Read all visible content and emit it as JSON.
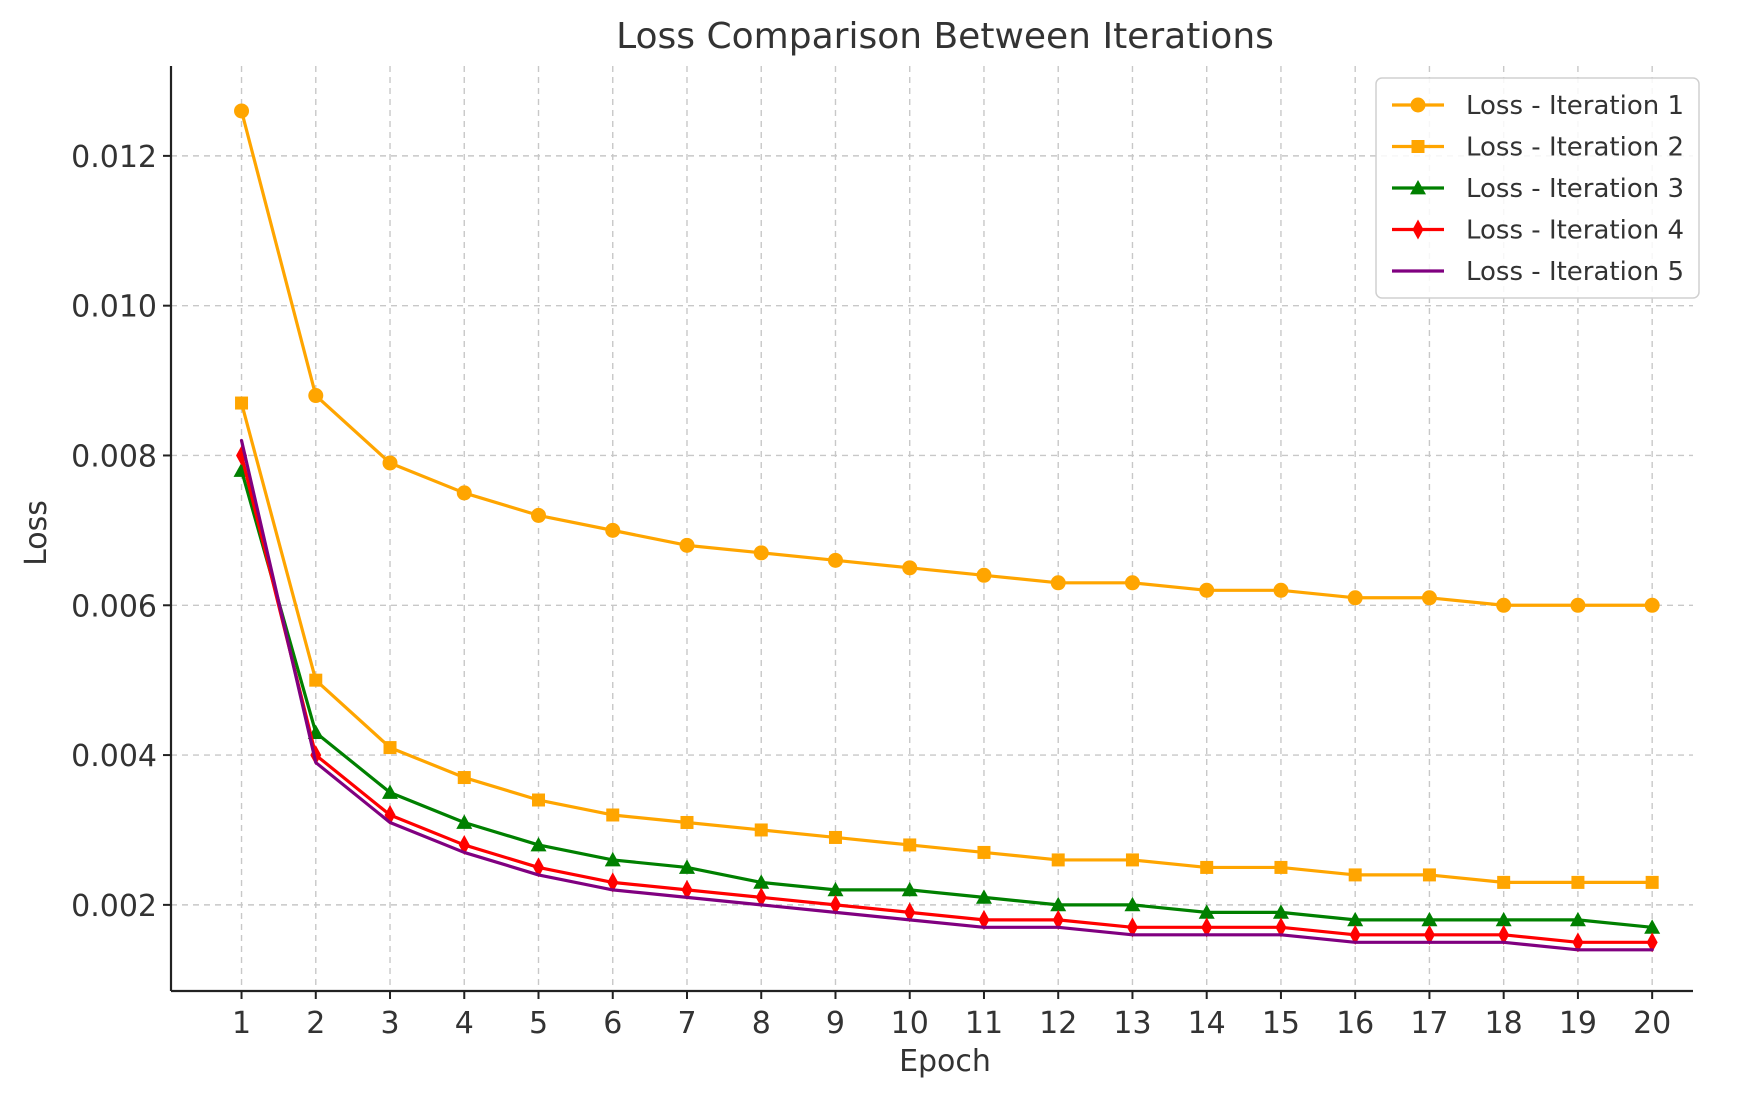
{
  "chart_data": {
    "type": "line",
    "title": "Loss Comparison Between Iterations",
    "xlabel": "Epoch",
    "ylabel": "Loss",
    "x": [
      1,
      2,
      3,
      4,
      5,
      6,
      7,
      8,
      9,
      10,
      11,
      12,
      13,
      14,
      15,
      16,
      17,
      18,
      19,
      20
    ],
    "x_tick_labels": [
      "1",
      "2",
      "3",
      "4",
      "5",
      "6",
      "7",
      "8",
      "9",
      "10",
      "11",
      "12",
      "13",
      "14",
      "15",
      "16",
      "17",
      "18",
      "19",
      "20"
    ],
    "y_ticks": [
      0.002,
      0.004,
      0.006,
      0.008,
      0.01,
      0.012
    ],
    "y_tick_labels": [
      "0.002",
      "0.004",
      "0.006",
      "0.008",
      "0.010",
      "0.012"
    ],
    "xlim": [
      0.05,
      20.55
    ],
    "ylim": [
      0.00085,
      0.0132
    ],
    "grid": true,
    "legend_position": "top-right",
    "series": [
      {
        "name": "Loss - Iteration 1",
        "color": "#FFA500",
        "marker": "circle",
        "values": [
          0.0126,
          0.0088,
          0.0079,
          0.0075,
          0.0072,
          0.007,
          0.0068,
          0.0067,
          0.0066,
          0.0065,
          0.0064,
          0.0063,
          0.0063,
          0.0062,
          0.0062,
          0.0061,
          0.0061,
          0.006,
          0.006,
          0.006
        ]
      },
      {
        "name": "Loss - Iteration 2",
        "color": "#FFA500",
        "marker": "square",
        "values": [
          0.0087,
          0.005,
          0.0041,
          0.0037,
          0.0034,
          0.0032,
          0.0031,
          0.003,
          0.0029,
          0.0028,
          0.0027,
          0.0026,
          0.0026,
          0.0025,
          0.0025,
          0.0024,
          0.0024,
          0.0023,
          0.0023,
          0.0023
        ]
      },
      {
        "name": "Loss - Iteration 3",
        "color": "#008000",
        "marker": "triangle",
        "values": [
          0.0078,
          0.0043,
          0.0035,
          0.0031,
          0.0028,
          0.0026,
          0.0025,
          0.0023,
          0.0022,
          0.0022,
          0.0021,
          0.002,
          0.002,
          0.0019,
          0.0019,
          0.0018,
          0.0018,
          0.0018,
          0.0018,
          0.0017
        ]
      },
      {
        "name": "Loss - Iteration 4",
        "color": "#FF0000",
        "marker": "diamond",
        "values": [
          0.008,
          0.004,
          0.0032,
          0.0028,
          0.0025,
          0.0023,
          0.0022,
          0.0021,
          0.002,
          0.0019,
          0.0018,
          0.0018,
          0.0017,
          0.0017,
          0.0017,
          0.0016,
          0.0016,
          0.0016,
          0.0015,
          0.0015
        ]
      },
      {
        "name": "Loss - Iteration 5",
        "color": "#800080",
        "marker": "none",
        "values": [
          0.0082,
          0.0039,
          0.0031,
          0.0027,
          0.0024,
          0.0022,
          0.0021,
          0.002,
          0.0019,
          0.0018,
          0.0017,
          0.0017,
          0.0016,
          0.0016,
          0.0016,
          0.0015,
          0.0015,
          0.0015,
          0.0014,
          0.0014
        ]
      }
    ]
  }
}
